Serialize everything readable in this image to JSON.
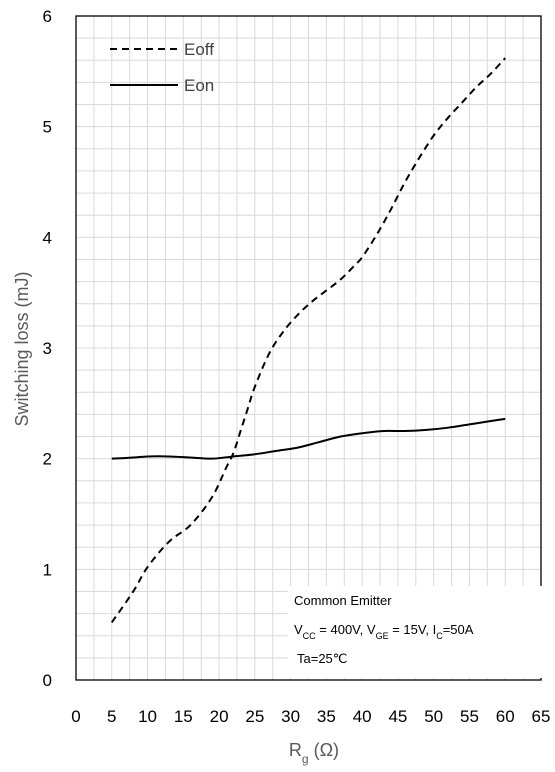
{
  "chart_data": {
    "type": "line",
    "xlabel": "Rg (Ω)",
    "xlabel_main": "R",
    "xlabel_sub": "g",
    "xlabel_unit": " (Ω)",
    "ylabel": "Switching loss (mJ)",
    "xlim": [
      0,
      65
    ],
    "ylim": [
      0,
      6
    ],
    "x_ticks": [
      0,
      5,
      10,
      15,
      20,
      25,
      30,
      35,
      40,
      45,
      50,
      55,
      60,
      65
    ],
    "y_ticks": [
      0,
      1,
      2,
      3,
      4,
      5,
      6
    ],
    "grid": true,
    "legend_position": "top-left",
    "series": [
      {
        "name": "Eoff",
        "style": "dashed",
        "color": "#000000",
        "x": [
          5,
          8,
          10,
          13,
          16,
          19,
          21,
          22,
          23,
          24,
          25,
          27,
          29,
          31,
          33,
          35,
          37,
          39,
          40,
          42,
          44,
          46,
          48,
          50,
          52,
          54,
          56,
          58,
          60
        ],
        "y": [
          0.52,
          0.8,
          1.02,
          1.25,
          1.4,
          1.65,
          1.92,
          2.05,
          2.25,
          2.45,
          2.65,
          2.95,
          3.15,
          3.3,
          3.42,
          3.52,
          3.62,
          3.75,
          3.82,
          4.02,
          4.25,
          4.5,
          4.72,
          4.92,
          5.08,
          5.22,
          5.36,
          5.48,
          5.62
        ]
      },
      {
        "name": "Eon",
        "style": "solid",
        "color": "#000000",
        "x": [
          5,
          8,
          10,
          13,
          16,
          19,
          22,
          25,
          28,
          31,
          34,
          37,
          40,
          43,
          46,
          49,
          52,
          55,
          58,
          60
        ],
        "y": [
          2.0,
          2.01,
          2.02,
          2.02,
          2.01,
          2.0,
          2.02,
          2.04,
          2.07,
          2.1,
          2.15,
          2.2,
          2.23,
          2.25,
          2.25,
          2.26,
          2.28,
          2.31,
          2.34,
          2.36
        ]
      }
    ],
    "annotations": {
      "line1": "Common Emitter",
      "line2": {
        "v1": "V",
        "v1_sub": "CC",
        "v1_rest": " = 400V, ",
        "v2": "V",
        "v2_sub": "GE",
        "v2_rest": " = 15V, ",
        "v3": "I",
        "v3_sub": "C",
        "v3_rest": "=50A"
      },
      "line3": "Ta=25℃"
    }
  }
}
